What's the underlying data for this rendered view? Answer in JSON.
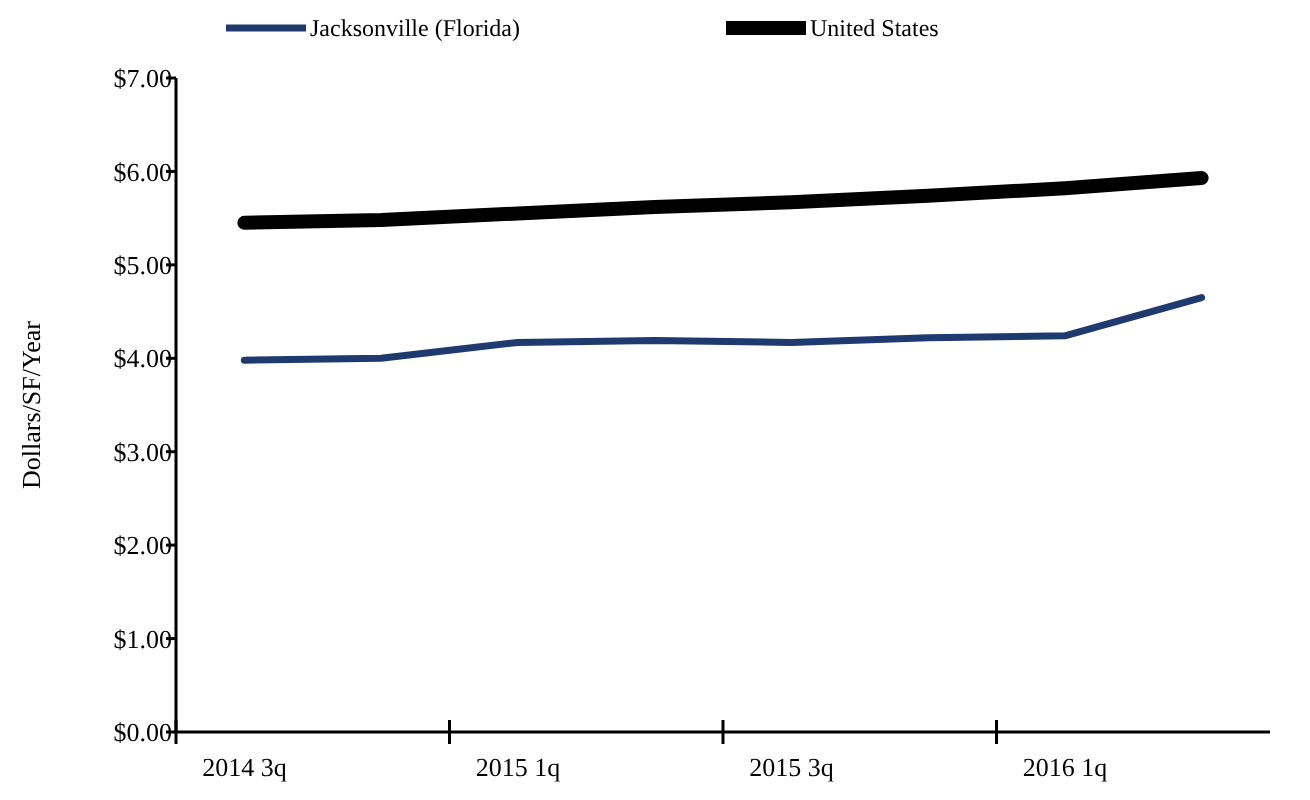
{
  "chart_data": {
    "type": "line",
    "ylabel": "Dollars/SF/Year",
    "categories": [
      "2014 3q",
      null,
      "2015 1q",
      null,
      "2015 3q",
      null,
      "2016 1q",
      null
    ],
    "series": [
      {
        "name": "Jacksonville (Florida)",
        "color": "#1f3a6e",
        "values": [
          3.98,
          4.0,
          4.17,
          4.19,
          4.17,
          4.22,
          4.24,
          4.65
        ]
      },
      {
        "name": "United States",
        "color": "#000000",
        "values": [
          5.45,
          5.48,
          5.55,
          5.62,
          5.67,
          5.74,
          5.82,
          5.93
        ]
      }
    ],
    "ylim": [
      0,
      7
    ],
    "yticks": [
      {
        "value": 0,
        "label": "$0.00"
      },
      {
        "value": 1,
        "label": "$1.00"
      },
      {
        "value": 2,
        "label": "$2.00"
      },
      {
        "value": 3,
        "label": "$3.00"
      },
      {
        "value": 4,
        "label": "$4.00"
      },
      {
        "value": 5,
        "label": "$5.00"
      },
      {
        "value": 6,
        "label": "$6.00"
      },
      {
        "value": 7,
        "label": "$7.00"
      }
    ],
    "grid": false,
    "legend": "top",
    "marker": "none",
    "line_style": "solid"
  }
}
